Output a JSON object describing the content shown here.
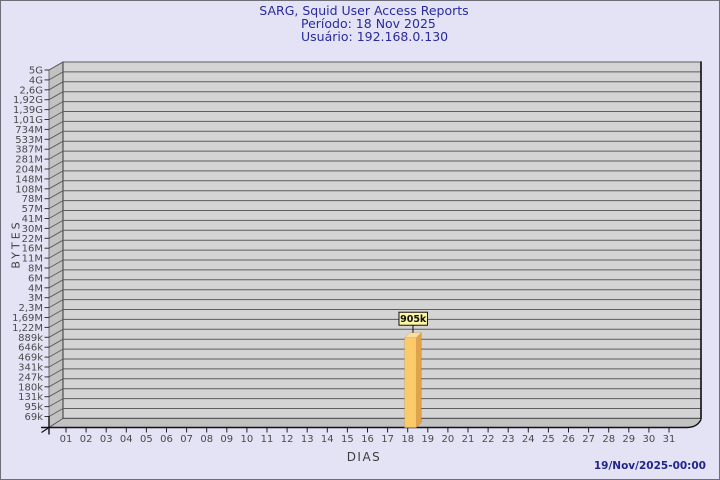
{
  "header": {
    "title": "SARG, Squid User Access Reports",
    "period": "Período: 18 Nov 2025",
    "user": "Usuário: 192.168.0.130"
  },
  "footer": {
    "timestamp": "19/Nov/2025-00:00"
  },
  "chart_data": {
    "type": "bar",
    "title": "SARG, Squid User Access Reports",
    "subtitle_period": "Período: 18 Nov 2025",
    "subtitle_user": "Usuário: 192.168.0.130",
    "xlabel": "DIAS",
    "ylabel": "BYTES",
    "y_scale": "logarithmic",
    "grid": true,
    "legend": null,
    "y_tick_labels": [
      "5G",
      "4G",
      "2,6G",
      "1,92G",
      "1,39G",
      "1,01G",
      "734M",
      "533M",
      "387M",
      "281M",
      "204M",
      "148M",
      "108M",
      "78M",
      "57M",
      "41M",
      "30M",
      "22M",
      "16M",
      "11M",
      "8M",
      "6M",
      "4M",
      "3M",
      "2,3M",
      "1,69M",
      "1,22M",
      "889k",
      "646k",
      "469k",
      "341k",
      "247k",
      "180k",
      "131k",
      "95k",
      "69k"
    ],
    "categories": [
      "01",
      "02",
      "03",
      "04",
      "05",
      "06",
      "07",
      "08",
      "09",
      "10",
      "11",
      "12",
      "13",
      "14",
      "15",
      "16",
      "17",
      "18",
      "19",
      "20",
      "21",
      "22",
      "23",
      "24",
      "25",
      "26",
      "27",
      "28",
      "29",
      "30",
      "31"
    ],
    "values": [
      0,
      0,
      0,
      0,
      0,
      0,
      0,
      0,
      0,
      0,
      0,
      0,
      0,
      0,
      0,
      0,
      0,
      905000,
      0,
      0,
      0,
      0,
      0,
      0,
      0,
      0,
      0,
      0,
      0,
      0,
      0
    ],
    "value_unit": "bytes",
    "annotations": [
      {
        "category": "18",
        "label": "905k",
        "value": 905000
      }
    ],
    "colors": {
      "background": "#e3e3f5",
      "plot_face": "#d4d4d4",
      "wall": "#c2c2c2",
      "grid_line": "#5c5c5c",
      "axis_line": "#111111",
      "tick_text": "#4b4b4b",
      "title_text": "#2a2a9e",
      "bar_front": "#fbca69",
      "bar_side": "#e2a24b",
      "bar_top": "#f6dfa2",
      "value_label_bg": "#fdf6a3",
      "value_label_border": "#111111"
    }
  }
}
